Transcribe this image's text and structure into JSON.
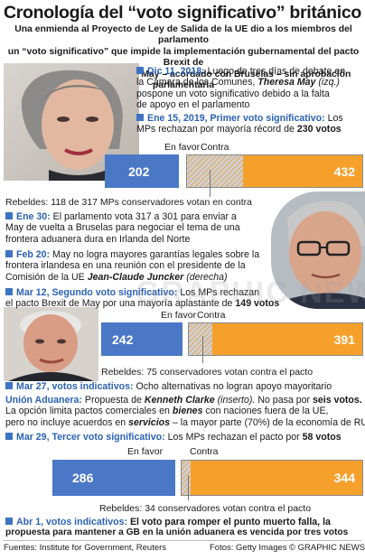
{
  "title": "Cronología del “voto significativo” británico",
  "subtitle": [
    "Una enmienda al Proyecto de Ley de Salida de la UE dio a los miembros del parlamento",
    "un “voto significativo” que impide la implementación gubernamental del pacto Brexit de",
    "la primera ministra Theresa May – acordado con Bruselas – sin aprobación parlamentaria"
  ],
  "events": {
    "dec11": {
      "date": "Dic 11, 2018:",
      "l1": "Luego de tres días de debate en",
      "l2": "la Cámara de los Comunes,",
      "name": "Theresa May",
      "tag": "(izq.)",
      "l3": "pospone un voto significativo debido a la falta",
      "l4": "de apoyo en el parlamento"
    },
    "jan15": {
      "date": "Ene 15, 2019, Primer voto significativo:",
      "l1a": "Los",
      "l2a": "MPs rechazan por mayoría récord de",
      "l2b": "230 votos"
    },
    "jan30": {
      "date": "Ene 30:",
      "l1": "El parlamento vota 317 a 301 para enviar a",
      "l2": "May de vuelta a Bruselas para negociar el tema de una",
      "l3": "frontera aduanera dura en Irlanda del Norte"
    },
    "feb20": {
      "date": "Feb 20:",
      "l1": "May no logra mayores garantías legales sobre la",
      "l2": "frontera irlandesa en una reunión con el presidente de la",
      "l3a": "Comisión de la UE",
      "name": "Jean-Claude Juncker",
      "tag": "(derecha)"
    },
    "mar12": {
      "date": "Mar 12, Segundo voto significativo:",
      "l1": "Los MPs rechazan",
      "l2a": "el pacto Brexit de May por una mayoría aplastante de",
      "l2b": "149 votos"
    },
    "mar27": {
      "date": "Mar 27, votos indicativos:",
      "l1": "Ocho alternativas no logran apoyo mayoritario"
    },
    "cu": {
      "head": "Unión Aduanera:",
      "t1": "Propuesta de",
      "name": "Kenneth Clarke",
      "tag": "(inserto).",
      "t2": "No pasa por",
      "votes": "seis votos.",
      "l2a": "La opción limita pactos comerciales en",
      "bienes": "bienes",
      "l2b": "con naciones fuera de la UE,",
      "l3a": "pero no incluye acuerdos en",
      "servicios": "servicios",
      "l3b": "– la mayor parte (70%) de la economía de RU"
    },
    "mar29": {
      "date": "Mar 29, Tercer voto significativo:",
      "l1": "Los MPs rechazan el pacto por",
      "votes": "58 votos"
    },
    "apr1": {
      "date": "Abr 1, votos indicativos:",
      "l1": "El voto para romper el punto muerto falla, la",
      "l2": "propuesta para mantener a GB en la unión aduanera es vencida por tres votos"
    }
  },
  "votes": [
    {
      "for_label": "En favor",
      "against_label": "Contra",
      "for": 202,
      "against": 432,
      "rebels": "Rebeldes: 118 de 317 MPs conservadores votan en contra"
    },
    {
      "for_label": "En favor",
      "against_label": "Contra",
      "for": 242,
      "against": 391,
      "rebels": "Rebeldes: 75 conservadores votan contra el pacto"
    },
    {
      "for_label": "En favor",
      "against_label": "Contra",
      "for": 286,
      "against": 344,
      "rebels": "Rebeldes: 34 conservadores votan contra el pacto"
    }
  ],
  "watermark": "GRAPHIC NEWS",
  "footer": {
    "sources": "Fuentes: Institute for Government, Reuters",
    "photos": "Fotos: Getty Images",
    "credit": "© GRAPHIC NEWS"
  },
  "colors": {
    "accent": "#2b62b5",
    "for_bar": "#4a78c6",
    "against_bar": "#f6a02c"
  }
}
